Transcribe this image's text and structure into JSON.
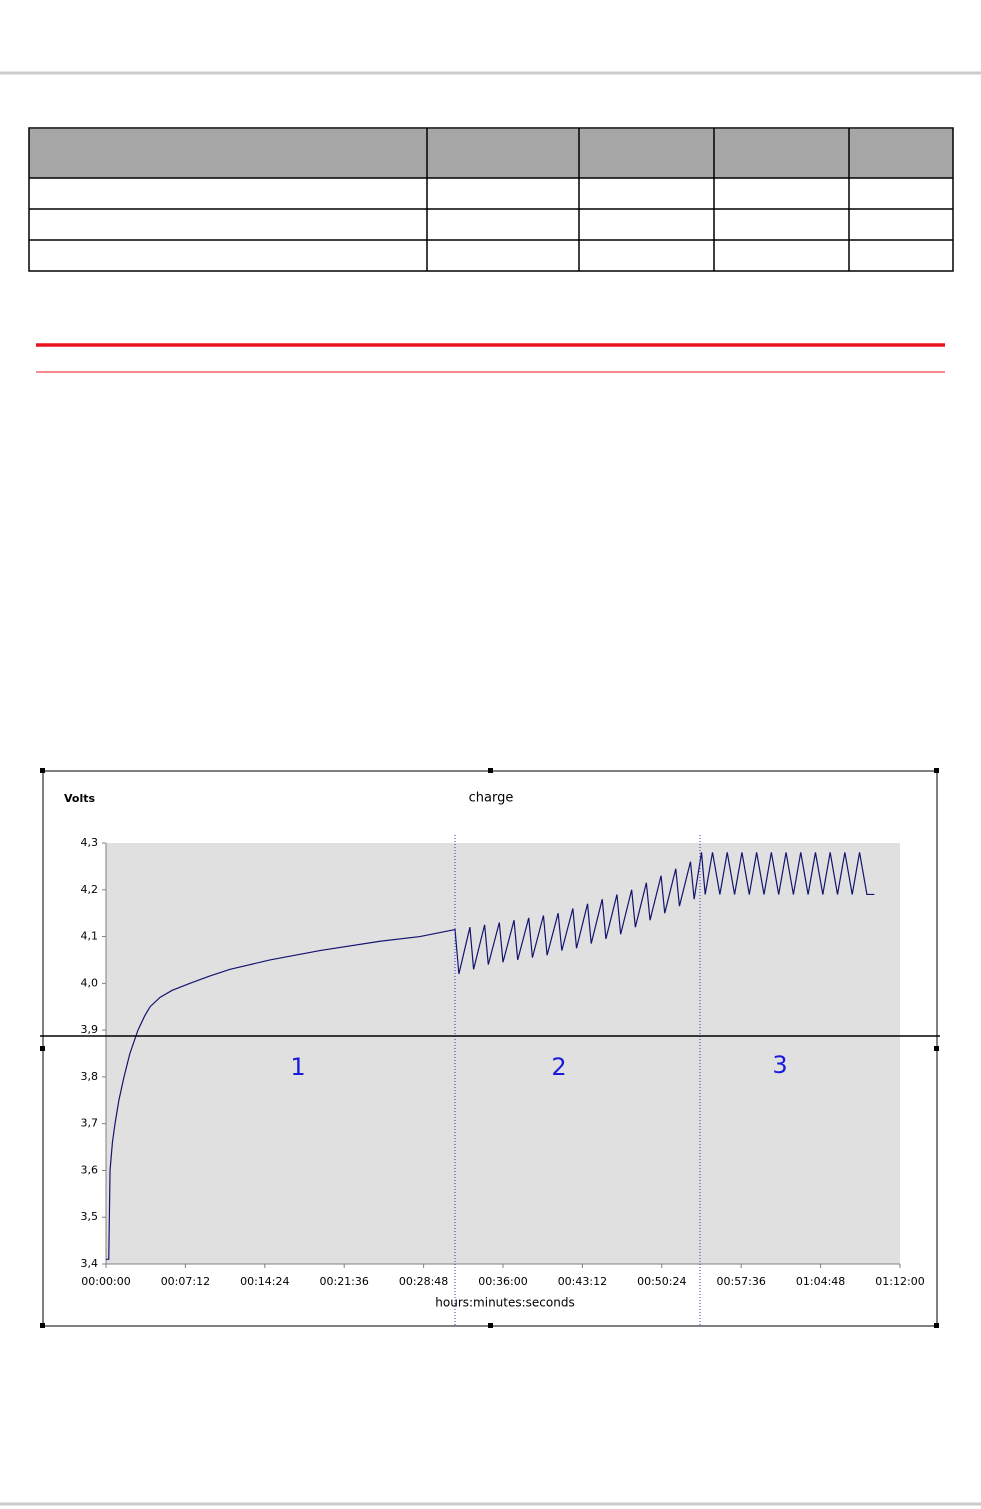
{
  "chart_data": {
    "type": "line",
    "title": "charge",
    "ylabel": "Volts",
    "xlabel": "hours:minutes:seconds",
    "annotations": [
      "1",
      "2",
      "3"
    ],
    "color": "#14146e",
    "xlim": [
      0,
      4320
    ],
    "xticks": [
      {
        "value": 0,
        "label": "00:00:00"
      },
      {
        "value": 432,
        "label": "00:07:12"
      },
      {
        "value": 864,
        "label": "00:14:24"
      },
      {
        "value": 1296,
        "label": "00:21:36"
      },
      {
        "value": 1728,
        "label": "00:28:48"
      },
      {
        "value": 2160,
        "label": "00:36:00"
      },
      {
        "value": 2592,
        "label": "00:43:12"
      },
      {
        "value": 3024,
        "label": "00:50:24"
      },
      {
        "value": 3456,
        "label": "00:57:36"
      },
      {
        "value": 3888,
        "label": "01:04:48"
      },
      {
        "value": 4320,
        "label": "01:12:00"
      }
    ],
    "ylim": [
      3.4,
      4.3
    ],
    "yticks": [
      {
        "value": 3.4,
        "label": "3,4"
      },
      {
        "value": 3.5,
        "label": "3,5"
      },
      {
        "value": 3.6,
        "label": "3,6"
      },
      {
        "value": 3.7,
        "label": "3,7"
      },
      {
        "value": 3.8,
        "label": "3,8"
      },
      {
        "value": 3.9,
        "label": "3,9"
      },
      {
        "value": 4.0,
        "label": "4,0"
      },
      {
        "value": 4.1,
        "label": "4,1"
      },
      {
        "value": 4.2,
        "label": "4,2"
      },
      {
        "value": 4.3,
        "label": "4,3"
      }
    ],
    "x": [
      0,
      15,
      22,
      35,
      49,
      70,
      98,
      130,
      174,
      210,
      240,
      294,
      360,
      457,
      560,
      675,
      892,
      1164,
      1491,
      1708,
      1899,
      1920,
      1980,
      2000,
      2060,
      2080,
      2140,
      2160,
      2220,
      2240,
      2300,
      2320,
      2380,
      2400,
      2460,
      2480,
      2540,
      2560,
      2620,
      2640,
      2700,
      2720,
      2780,
      2800,
      2860,
      2880,
      2940,
      2960,
      3020,
      3040,
      3100,
      3120,
      3180,
      3200,
      3240,
      3260,
      3300,
      3340,
      3380,
      3420,
      3460,
      3500,
      3540,
      3580,
      3620,
      3660,
      3700,
      3740,
      3780,
      3820,
      3860,
      3900,
      3940,
      3980,
      4020,
      4060,
      4100,
      4140,
      4180
    ],
    "values": [
      3.41,
      3.41,
      3.6,
      3.66,
      3.7,
      3.75,
      3.8,
      3.85,
      3.9,
      3.93,
      3.95,
      3.97,
      3.985,
      4.0,
      4.015,
      4.03,
      4.05,
      4.07,
      4.09,
      4.1,
      4.115,
      4.02,
      4.12,
      4.03,
      4.125,
      4.04,
      4.13,
      4.045,
      4.135,
      4.05,
      4.14,
      4.055,
      4.145,
      4.06,
      4.15,
      4.07,
      4.16,
      4.075,
      4.17,
      4.085,
      4.18,
      4.095,
      4.19,
      4.105,
      4.2,
      4.12,
      4.215,
      4.135,
      4.23,
      4.15,
      4.245,
      4.165,
      4.26,
      4.18,
      4.28,
      4.19,
      4.28,
      4.19,
      4.28,
      4.19,
      4.28,
      4.19,
      4.28,
      4.19,
      4.28,
      4.19,
      4.28,
      4.19,
      4.28,
      4.19,
      4.28,
      4.19,
      4.28,
      4.19,
      4.28,
      4.19,
      4.28,
      4.19,
      4.19
    ]
  }
}
